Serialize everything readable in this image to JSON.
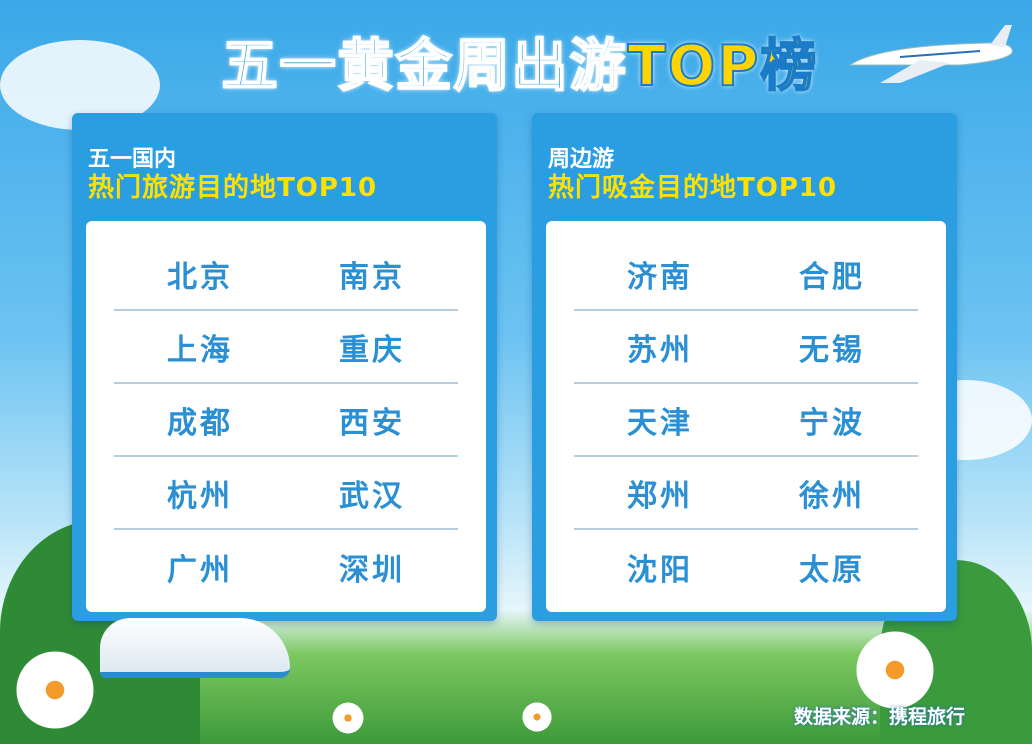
{
  "title": {
    "main": "五一黄金周出游",
    "highlight": "TOP榜"
  },
  "panels": [
    {
      "subtitle": "五一国内",
      "heading": "热门旅游目的地TOP10",
      "rows": [
        [
          "北京",
          "南京"
        ],
        [
          "上海",
          "重庆"
        ],
        [
          "成都",
          "西安"
        ],
        [
          "杭州",
          "武汉"
        ],
        [
          "广州",
          "深圳"
        ]
      ]
    },
    {
      "subtitle": "周边游",
      "heading": "热门吸金目的地TOP10",
      "rows": [
        [
          "济南",
          "合肥"
        ],
        [
          "苏州",
          "无锡"
        ],
        [
          "天津",
          "宁波"
        ],
        [
          "郑州",
          "徐州"
        ],
        [
          "沈阳",
          "太原"
        ]
      ]
    }
  ],
  "source": "数据来源：携程旅行",
  "colors": {
    "panel": "#2b9ee2",
    "city_text": "#2b8fd3",
    "heading": "#ffe100"
  }
}
